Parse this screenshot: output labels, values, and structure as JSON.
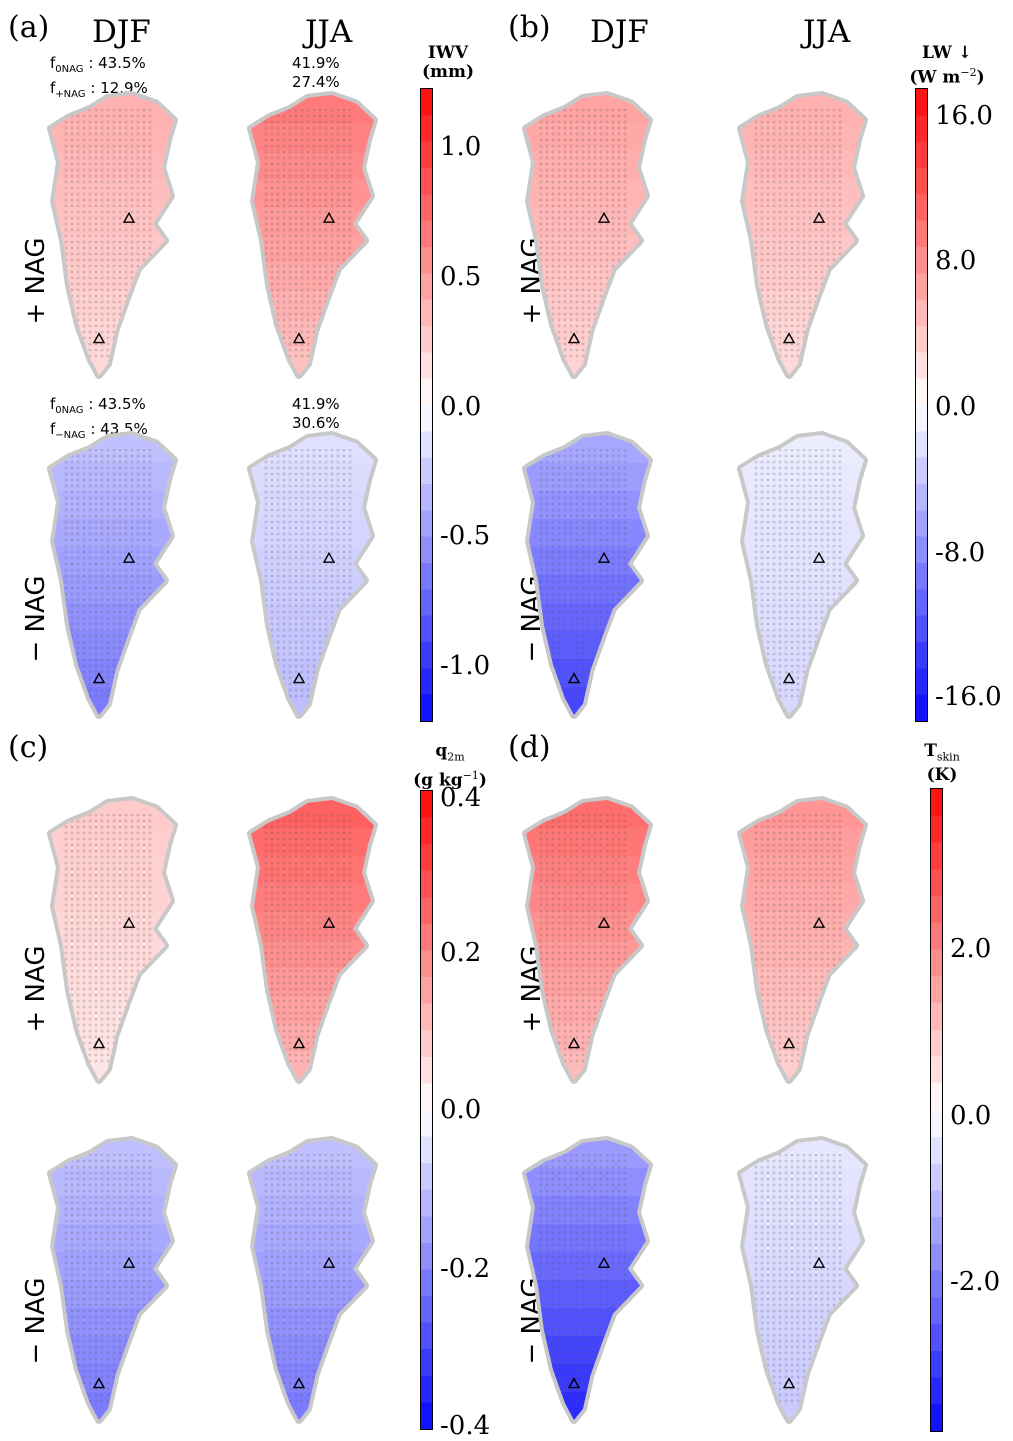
{
  "panels": [
    {
      "id": "a",
      "letter": "(a)",
      "seasons": [
        "DJF",
        "JJA"
      ],
      "rows": [
        "+ NAG",
        "− NAG"
      ],
      "fractions": {
        "pos": {
          "djf_line1_prefix": "f",
          "djf_line1_sub": "0NAG",
          "djf_line1_val": " : 43.5%",
          "djf_line2_prefix": "f",
          "djf_line2_sub": "+NAG",
          "djf_line2_val": " : 12.9%",
          "jja_line1": "41.9%",
          "jja_line2": "27.4%"
        },
        "neg": {
          "djf_line1_prefix": "f",
          "djf_line1_sub": "0NAG",
          "djf_line1_val": " : 43.5%",
          "djf_line2_prefix": "f",
          "djf_line2_sub": "−NAG",
          "djf_line2_val": " : 43.5%",
          "jja_line1": "41.9%",
          "jja_line2": "30.6%"
        }
      },
      "colorbar": {
        "title_line1": "IWV",
        "title_line2": "(mm)",
        "ticks": [
          "1.0",
          "0.5",
          "0.0",
          "-0.5",
          "-1.0"
        ]
      },
      "maps": {
        "pos_djf": 0.3,
        "pos_jja": 0.5,
        "neg_djf": -0.5,
        "neg_jja": -0.25
      }
    },
    {
      "id": "b",
      "letter": "(b)",
      "seasons": [
        "DJF",
        "JJA"
      ],
      "rows": [
        "+ NAG",
        "− NAG"
      ],
      "colorbar": {
        "title_line1": "LW ↓",
        "title_line2_main": "(W m",
        "title_line2_sup": "−2",
        "title_line2_end": ")",
        "ticks": [
          "16.0",
          "8.0",
          "0.0",
          "-8.0",
          "-16.0"
        ]
      },
      "maps": {
        "pos_djf": 0.35,
        "pos_jja": 0.3,
        "neg_djf": -0.7,
        "neg_jja": -0.15
      }
    },
    {
      "id": "c",
      "letter": "(c)",
      "rows": [
        "+ NAG",
        "− NAG"
      ],
      "colorbar": {
        "title_main": "q",
        "title_sub": "2m",
        "title_line2_main": "(g kg",
        "title_line2_sup": "−1",
        "title_line2_end": ")",
        "ticks": [
          "0.4",
          "0.2",
          "0.0",
          "-0.2",
          "-0.4"
        ]
      },
      "maps": {
        "pos_djf": 0.2,
        "pos_jja": 0.6,
        "neg_djf": -0.5,
        "neg_jja": -0.5
      }
    },
    {
      "id": "d",
      "letter": "(d)",
      "rows": [
        "+ NAG",
        "− NAG"
      ],
      "colorbar": {
        "title_main": "T",
        "title_sub": "skin",
        "title_line2": "(K)",
        "ticks": [
          "2.0",
          "0.0",
          "-2.0"
        ]
      },
      "maps": {
        "pos_djf": 0.55,
        "pos_jja": 0.4,
        "neg_djf": -0.8,
        "neg_jja": -0.2
      }
    }
  ],
  "chart_data": {
    "type": "heatmap",
    "description_fields": [
      "IWV",
      "LW ↓",
      "q2m",
      "Tskin"
    ],
    "units": [
      "mm",
      "W m−2",
      "g kg−1",
      "K"
    ],
    "colorbar_ranges": [
      [
        -1.2,
        1.2
      ],
      [
        -18,
        18
      ],
      [
        -0.4,
        0.4
      ],
      [
        -4,
        4
      ]
    ],
    "colormap": "bwr"
  },
  "colors": {
    "red": "#ff0000",
    "blue": "#0000ff",
    "land": "#c8c8c8"
  }
}
